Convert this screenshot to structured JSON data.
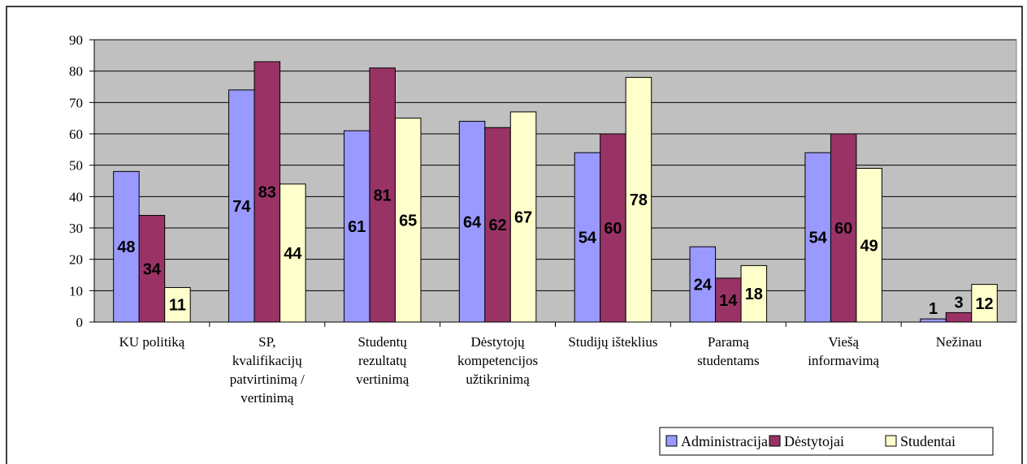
{
  "chart_data": {
    "type": "bar",
    "title": "",
    "xlabel": "",
    "ylabel": "",
    "ylim": [
      0,
      90
    ],
    "yticks": [
      0,
      10,
      20,
      30,
      40,
      50,
      60,
      70,
      80,
      90
    ],
    "grid": true,
    "legend_position": "bottom-right",
    "categories": [
      [
        "KU politiką"
      ],
      [
        "SP,",
        "kvalifikacijų",
        "patvirtinimą /",
        "vertinimą"
      ],
      [
        "Studentų",
        "rezultatų",
        "vertinimą"
      ],
      [
        "Dėstytojų",
        "kompetencijos",
        "užtikrinimą"
      ],
      [
        "Studijų išteklius"
      ],
      [
        "Paramą",
        "studentams"
      ],
      [
        "Viešą",
        "informavimą"
      ],
      [
        "Nežinau"
      ]
    ],
    "series": [
      {
        "name": "Administracija",
        "color": "#9999ff",
        "values": [
          48,
          74,
          61,
          64,
          54,
          24,
          54,
          1
        ]
      },
      {
        "name": "Dėstytojai",
        "color": "#993366",
        "values": [
          34,
          83,
          81,
          62,
          60,
          14,
          60,
          3
        ]
      },
      {
        "name": "Studentai",
        "color": "#ffffcc",
        "values": [
          11,
          44,
          65,
          67,
          78,
          18,
          49,
          12
        ]
      }
    ]
  }
}
